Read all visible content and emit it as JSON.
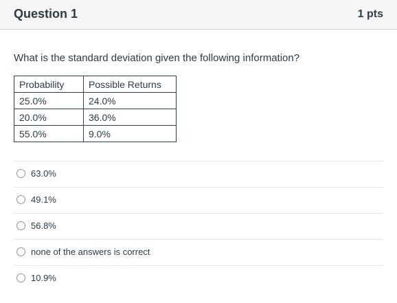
{
  "header": {
    "title": "Question 1",
    "points": "1 pts"
  },
  "question": {
    "text": "What is the standard deviation given the following information?"
  },
  "table": {
    "headers": [
      "Probability",
      "Possible Returns"
    ],
    "rows": [
      [
        "25.0%",
        "24.0%"
      ],
      [
        "20.0%",
        "36.0%"
      ],
      [
        "55.0%",
        "9.0%"
      ]
    ]
  },
  "answers": [
    {
      "label": "63.0%",
      "selected": false
    },
    {
      "label": "49.1%",
      "selected": false
    },
    {
      "label": "56.8%",
      "selected": false
    },
    {
      "label": "none of the answers is correct",
      "selected": false
    },
    {
      "label": "10.9%",
      "selected": false
    }
  ]
}
